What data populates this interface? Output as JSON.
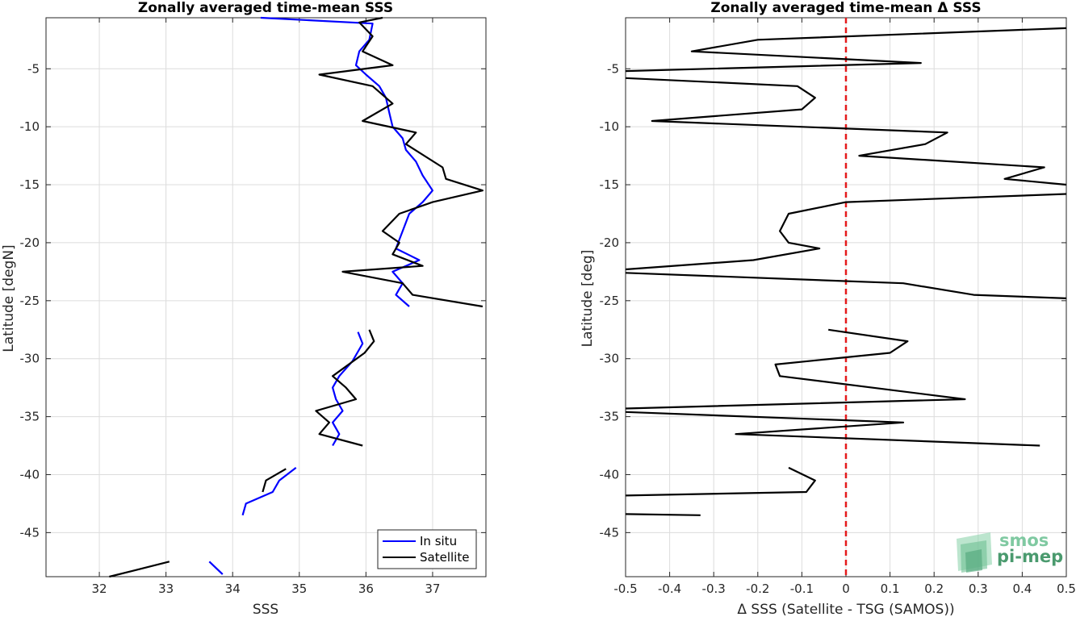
{
  "chart_data": [
    {
      "type": "line",
      "title": "Zonally averaged time-mean SSS",
      "xlabel": "SSS",
      "ylabel": "Latitude [degN]",
      "xlim": [
        31.2,
        37.8
      ],
      "ylim": [
        -48.8,
        -0.6
      ],
      "xticks": [
        32,
        33,
        34,
        35,
        36,
        37
      ],
      "xtick_labels": [
        "32",
        "33",
        "34",
        "35",
        "36",
        "37"
      ],
      "yticks": [
        -45,
        -40,
        -35,
        -30,
        -25,
        -20,
        -15,
        -10,
        -5
      ],
      "ytick_labels": [
        "-45",
        "-40",
        "-35",
        "-30",
        "-25",
        "-20",
        "-15",
        "-10",
        "-5"
      ],
      "grid": true,
      "legend": "bottom-right",
      "legend_entries": [
        "In situ",
        "Satellite"
      ],
      "series": [
        {
          "name": "In situ",
          "color": "#0000ff",
          "segments": [
            [
              [
                34.42,
                -0.6
              ],
              [
                36.1,
                -1.1
              ],
              [
                36.05,
                -2.5
              ],
              [
                35.9,
                -3.5
              ],
              [
                35.85,
                -4.7
              ],
              [
                36.0,
                -5.5
              ],
              [
                36.2,
                -6.5
              ],
              [
                36.3,
                -7.5
              ],
              [
                36.35,
                -8.8
              ],
              [
                36.4,
                -10.0
              ],
              [
                36.55,
                -11.0
              ],
              [
                36.6,
                -12.0
              ],
              [
                36.75,
                -13.0
              ],
              [
                36.85,
                -14.2
              ],
              [
                37.0,
                -15.5
              ],
              [
                36.85,
                -16.5
              ],
              [
                36.65,
                -17.5
              ],
              [
                36.55,
                -19.0
              ],
              [
                36.45,
                -20.5
              ],
              [
                36.8,
                -21.5
              ],
              [
                36.4,
                -22.5
              ],
              [
                36.55,
                -23.5
              ],
              [
                36.45,
                -24.5
              ],
              [
                36.65,
                -25.5
              ]
            ],
            [
              [
                35.88,
                -27.7
              ],
              [
                35.95,
                -28.7
              ],
              [
                35.8,
                -30.2
              ],
              [
                35.6,
                -31.5
              ],
              [
                35.5,
                -32.5
              ],
              [
                35.55,
                -33.5
              ],
              [
                35.65,
                -34.5
              ],
              [
                35.5,
                -35.5
              ],
              [
                35.6,
                -36.5
              ],
              [
                35.5,
                -37.5
              ]
            ],
            [
              [
                34.95,
                -39.4
              ],
              [
                34.7,
                -40.5
              ],
              [
                34.6,
                -41.5
              ],
              [
                34.2,
                -42.5
              ],
              [
                34.15,
                -43.5
              ]
            ],
            [
              [
                33.65,
                -47.5
              ],
              [
                33.85,
                -48.6
              ]
            ]
          ]
        },
        {
          "name": "Satellite",
          "color": "#000000",
          "segments": [
            [
              [
                36.25,
                -0.5
              ],
              [
                35.9,
                -1.0
              ],
              [
                36.1,
                -2.2
              ],
              [
                35.95,
                -3.5
              ],
              [
                36.4,
                -4.7
              ],
              [
                35.3,
                -5.5
              ],
              [
                36.1,
                -6.5
              ],
              [
                36.4,
                -8.0
              ],
              [
                35.95,
                -9.5
              ],
              [
                36.75,
                -10.5
              ],
              [
                36.6,
                -11.5
              ],
              [
                37.15,
                -13.5
              ],
              [
                37.2,
                -14.5
              ],
              [
                37.75,
                -15.5
              ],
              [
                37.0,
                -16.5
              ],
              [
                36.5,
                -17.5
              ],
              [
                36.25,
                -19.0
              ],
              [
                36.5,
                -20.0
              ],
              [
                36.4,
                -21.0
              ],
              [
                36.85,
                -22.0
              ],
              [
                35.65,
                -22.5
              ],
              [
                36.55,
                -23.5
              ],
              [
                36.7,
                -24.5
              ],
              [
                37.75,
                -25.5
              ]
            ],
            [
              [
                36.05,
                -27.5
              ],
              [
                36.12,
                -28.5
              ],
              [
                35.98,
                -29.5
              ],
              [
                35.5,
                -31.5
              ],
              [
                35.7,
                -32.5
              ],
              [
                35.85,
                -33.5
              ],
              [
                35.25,
                -34.5
              ],
              [
                35.45,
                -35.5
              ],
              [
                35.3,
                -36.5
              ],
              [
                35.95,
                -37.5
              ]
            ],
            [
              [
                34.8,
                -39.5
              ],
              [
                34.5,
                -40.5
              ],
              [
                34.45,
                -41.5
              ]
            ],
            [
              [
                33.05,
                -47.5
              ],
              [
                32.5,
                -48.3
              ],
              [
                32.15,
                -48.8
              ]
            ]
          ]
        }
      ]
    },
    {
      "type": "line",
      "title": "Zonally averaged time-mean Δ SSS",
      "xlabel": "Δ SSS (Satellite - TSG (SAMOS))",
      "ylabel": "Latitude [deg]",
      "xlim": [
        -0.5,
        0.5
      ],
      "ylim": [
        -48.8,
        -0.6
      ],
      "xticks": [
        -0.5,
        -0.4,
        -0.3,
        -0.2,
        -0.1,
        0,
        0.1,
        0.2,
        0.3,
        0.4,
        0.5
      ],
      "xtick_labels": [
        "-0.5",
        "-0.4",
        "-0.3",
        "-0.2",
        "-0.1",
        "0",
        "0.1",
        "0.2",
        "0.3",
        "0.4",
        "0.5"
      ],
      "yticks": [
        -45,
        -40,
        -35,
        -30,
        -25,
        -20,
        -15,
        -10,
        -5
      ],
      "ytick_labels": [
        "-45",
        "-40",
        "-35",
        "-30",
        "-25",
        "-20",
        "-15",
        "-10",
        "-5"
      ],
      "grid": true,
      "reference_line": {
        "x": 0,
        "color": "#e41a1c",
        "style": "dashed"
      },
      "series": [
        {
          "color": "#000000",
          "segments": [
            [
              [
                0.5,
                -1.5
              ],
              [
                -0.2,
                -2.5
              ],
              [
                -0.35,
                -3.5
              ],
              [
                0.17,
                -4.5
              ],
              [
                -0.5,
                -5.2
              ]
            ],
            [
              [
                -0.5,
                -5.8
              ],
              [
                -0.11,
                -6.5
              ],
              [
                -0.07,
                -7.5
              ],
              [
                -0.1,
                -8.5
              ],
              [
                -0.44,
                -9.5
              ],
              [
                0.23,
                -10.5
              ],
              [
                0.18,
                -11.5
              ],
              [
                0.03,
                -12.5
              ],
              [
                0.45,
                -13.5
              ],
              [
                0.36,
                -14.5
              ],
              [
                0.5,
                -15.0
              ]
            ],
            [
              [
                0.5,
                -15.8
              ],
              [
                0.0,
                -16.5
              ],
              [
                -0.13,
                -17.5
              ],
              [
                -0.15,
                -19.0
              ],
              [
                -0.13,
                -20.0
              ],
              [
                -0.06,
                -20.5
              ],
              [
                -0.21,
                -21.5
              ],
              [
                -0.5,
                -22.3
              ]
            ],
            [
              [
                -0.5,
                -22.6
              ],
              [
                0.13,
                -23.5
              ],
              [
                0.29,
                -24.5
              ],
              [
                0.5,
                -24.8
              ]
            ],
            [
              [
                -0.04,
                -27.5
              ],
              [
                0.14,
                -28.5
              ],
              [
                0.1,
                -29.5
              ],
              [
                -0.16,
                -30.5
              ],
              [
                -0.15,
                -31.5
              ],
              [
                0.27,
                -33.5
              ],
              [
                -0.5,
                -34.3
              ]
            ],
            [
              [
                -0.5,
                -34.6
              ],
              [
                0.13,
                -35.5
              ],
              [
                -0.25,
                -36.5
              ],
              [
                0.44,
                -37.5
              ]
            ],
            [
              [
                -0.13,
                -39.4
              ],
              [
                -0.07,
                -40.5
              ],
              [
                -0.09,
                -41.5
              ],
              [
                -0.5,
                -41.8
              ]
            ],
            [
              [
                -0.5,
                -43.4
              ],
              [
                -0.33,
                -43.5
              ]
            ]
          ]
        }
      ]
    }
  ],
  "logo": {
    "line1": "smos",
    "line2": "pi-mep",
    "color1": "#7fc9a1",
    "color2": "#4a9a6e"
  }
}
